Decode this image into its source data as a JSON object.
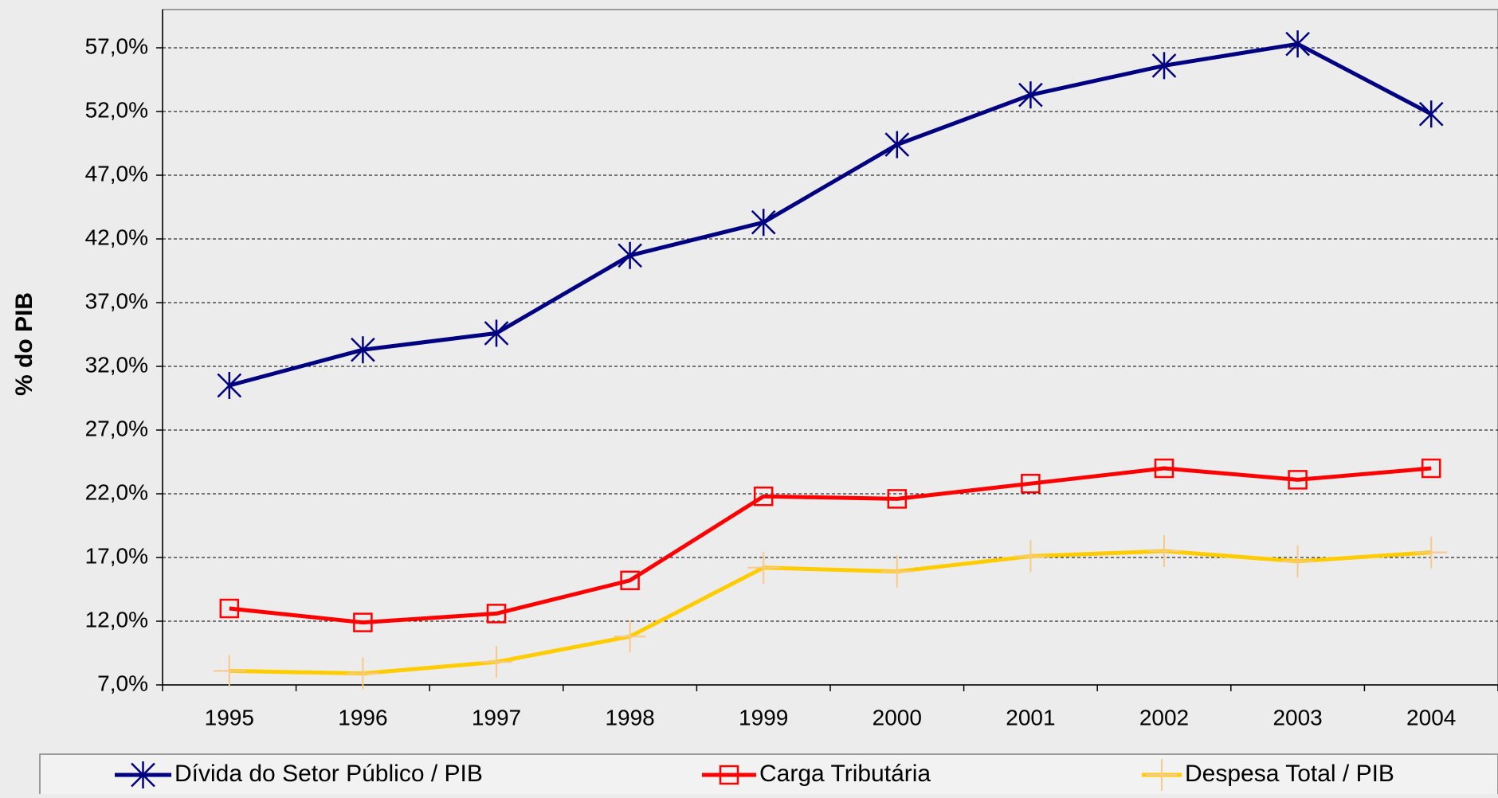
{
  "chart_data": {
    "type": "line",
    "y_axis_label": "% do PIB",
    "categories": [
      "1995",
      "1996",
      "1997",
      "1998",
      "1999",
      "2000",
      "2001",
      "2002",
      "2003",
      "2004"
    ],
    "series": [
      {
        "name": "Dívida do Setor Público / PIB",
        "color": "#000080",
        "marker": "asterisk",
        "values": [
          30.5,
          33.3,
          34.6,
          40.7,
          43.3,
          49.4,
          53.3,
          55.6,
          57.3,
          51.8
        ]
      },
      {
        "name": "Carga Tributária",
        "color": "#ff0000",
        "marker": "square",
        "values": [
          13.0,
          11.9,
          12.6,
          15.2,
          21.8,
          21.6,
          22.8,
          24.0,
          23.1,
          24.0
        ]
      },
      {
        "name": "Despesa Total / PIB",
        "color": "#ffcc00",
        "marker": "plus",
        "values": [
          8.1,
          7.9,
          8.8,
          10.8,
          16.2,
          15.9,
          17.1,
          17.5,
          16.7,
          17.4
        ]
      }
    ],
    "ylim": [
      7,
      60
    ],
    "yticks": [
      {
        "value": 7,
        "label": "7,0%"
      },
      {
        "value": 12,
        "label": "12,0%"
      },
      {
        "value": 17,
        "label": "17,0%"
      },
      {
        "value": 22,
        "label": "22,0%"
      },
      {
        "value": 27,
        "label": "27,0%"
      },
      {
        "value": 32,
        "label": "32,0%"
      },
      {
        "value": 37,
        "label": "37,0%"
      },
      {
        "value": 42,
        "label": "42,0%"
      },
      {
        "value": 47,
        "label": "47,0%"
      },
      {
        "value": 52,
        "label": "52,0%"
      },
      {
        "value": 57,
        "label": "57,0%"
      }
    ],
    "grid": true,
    "legend": "bottom"
  }
}
